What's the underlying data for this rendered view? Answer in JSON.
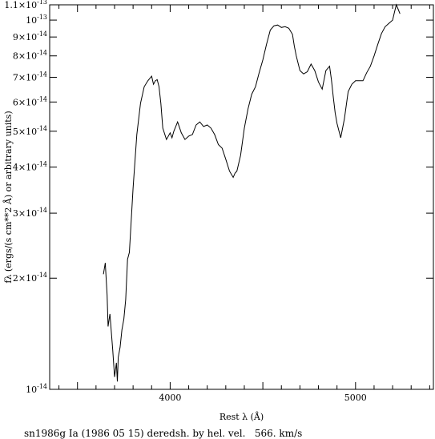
{
  "chart_data": {
    "type": "line",
    "title": "",
    "xlabel": "Rest λ (Å)",
    "ylabel": "fλ (ergs/(s cm**2 Å) or arbitrary units)",
    "caption": "sn1986g Ia (1986 05 15) deredsh. by hel. vel.   566. km/s",
    "xlim": [
      3350,
      5420
    ],
    "ylim": [
      1e-14,
      1.1e-13
    ],
    "yscale": "log",
    "grid": false,
    "x_ticks": [
      {
        "value": 4000,
        "label": "4000"
      },
      {
        "value": 5000,
        "label": "5000"
      }
    ],
    "y_ticks": [
      {
        "value": 1e-14,
        "label": "10^-14"
      },
      {
        "value": 2e-14,
        "label": "2×10^-14"
      },
      {
        "value": 3e-14,
        "label": "3×10^-14"
      },
      {
        "value": 4e-14,
        "label": "4×10^-14"
      },
      {
        "value": 5e-14,
        "label": "5×10^-14"
      },
      {
        "value": 6e-14,
        "label": "6×10^-14"
      },
      {
        "value": 7e-14,
        "label": "7×10^-14"
      },
      {
        "value": 8e-14,
        "label": "8×10^-14"
      },
      {
        "value": 9e-14,
        "label": "9×10^-14"
      },
      {
        "value": 1e-13,
        "label": "10^-13"
      },
      {
        "value": 1.1e-13,
        "label": "1.1×10^-13"
      }
    ],
    "series": [
      {
        "x": [
          3640,
          3650,
          3660,
          3665,
          3675,
          3690,
          3700,
          3710,
          3715,
          3720,
          3730,
          3740,
          3750,
          3760,
          3770,
          3780,
          3800,
          3820,
          3840,
          3860,
          3880,
          3900,
          3910,
          3920,
          3930,
          3940,
          3950,
          3960,
          3980,
          4000,
          4010,
          4020,
          4040,
          4060,
          4080,
          4100,
          4120,
          4140,
          4160,
          4180,
          4200,
          4220,
          4240,
          4260,
          4280,
          4300,
          4320,
          4340,
          4350,
          4360,
          4380,
          4400,
          4420,
          4440,
          4460,
          4480,
          4500,
          4520,
          4540,
          4560,
          4580,
          4600,
          4620,
          4640,
          4660,
          4670,
          4680,
          4700,
          4720,
          4740,
          4760,
          4780,
          4800,
          4820,
          4840,
          4860,
          4870,
          4880,
          4890,
          4900,
          4920,
          4940,
          4960,
          4980,
          5000,
          5020,
          5040,
          5060,
          5080,
          5100,
          5120,
          5140,
          5160,
          5180,
          5200,
          5210,
          5220,
          5230,
          5240
        ],
        "y": [
          2.05e-14,
          2.2e-14,
          1.8e-14,
          1.48e-14,
          1.6e-14,
          1.28e-14,
          1.08e-14,
          1.18e-14,
          1.05e-14,
          1.22e-14,
          1.3e-14,
          1.45e-14,
          1.55e-14,
          1.75e-14,
          2.25e-14,
          2.35e-14,
          3.5e-14,
          4.9e-14,
          5.95e-14,
          6.6e-14,
          6.85e-14,
          7.05e-14,
          6.7e-14,
          6.85e-14,
          6.9e-14,
          6.6e-14,
          5.95e-14,
          5.1e-14,
          4.75e-14,
          4.95e-14,
          4.8e-14,
          5e-14,
          5.3e-14,
          4.95e-14,
          4.75e-14,
          4.85e-14,
          4.9e-14,
          5.2e-14,
          5.3e-14,
          5.15e-14,
          5.2e-14,
          5.1e-14,
          4.9e-14,
          4.6e-14,
          4.5e-14,
          4.2e-14,
          3.9e-14,
          3.75e-14,
          3.85e-14,
          3.9e-14,
          4.3e-14,
          5.1e-14,
          5.75e-14,
          6.3e-14,
          6.6e-14,
          7.2e-14,
          7.8e-14,
          8.6e-14,
          9.4e-14,
          9.65e-14,
          9.7e-14,
          9.55e-14,
          9.6e-14,
          9.5e-14,
          9.15e-14,
          8.5e-14,
          8e-14,
          7.3e-14,
          7.15e-14,
          7.25e-14,
          7.6e-14,
          7.3e-14,
          6.8e-14,
          6.5e-14,
          7.3e-14,
          7.5e-14,
          6.9e-14,
          6.2e-14,
          5.6e-14,
          5.25e-14,
          4.8e-14,
          5.4e-14,
          6.4e-14,
          6.7e-14,
          6.85e-14,
          6.85e-14,
          6.85e-14,
          7.2e-14,
          7.5e-14,
          8e-14,
          8.6e-14,
          9.2e-14,
          9.6e-14,
          9.8e-14,
          1e-13,
          1.05e-13,
          1.1e-13,
          1.07e-13,
          1.04e-13
        ]
      }
    ]
  }
}
